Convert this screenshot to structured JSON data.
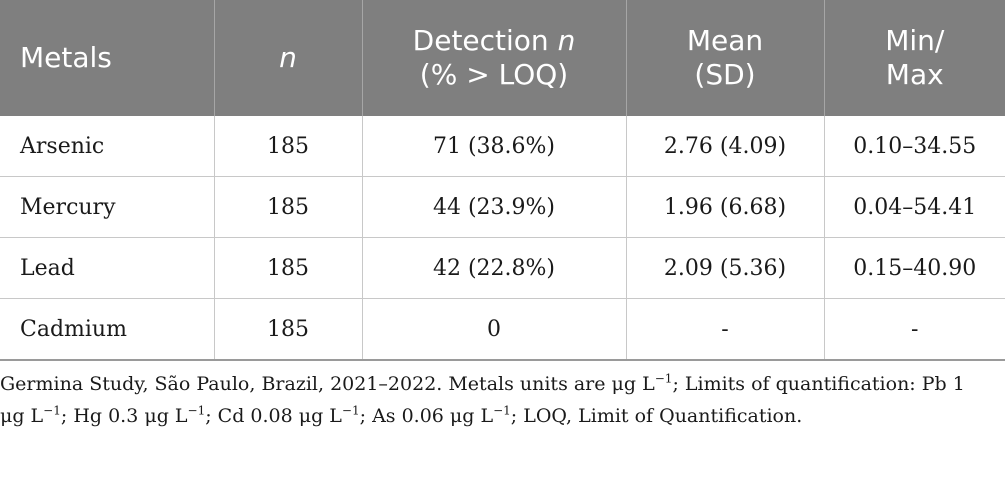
{
  "table": {
    "headers": {
      "metals": "Metals",
      "n": "n",
      "detection_line1_text": "Detection ",
      "detection_line1_ital": "n",
      "detection_line2": "(% > LOQ)",
      "mean_line1": "Mean",
      "mean_line2": "(SD)",
      "minmax_line1": "Min/",
      "minmax_line2": "Max"
    },
    "rows": [
      {
        "metal": "Arsenic",
        "n": "185",
        "detection": "71 (38.6%)",
        "mean_sd": "2.76 (4.09)",
        "min_max": "0.10–34.55"
      },
      {
        "metal": "Mercury",
        "n": "185",
        "detection": "44 (23.9%)",
        "mean_sd": "1.96 (6.68)",
        "min_max": "0.04–54.41"
      },
      {
        "metal": "Lead",
        "n": "185",
        "detection": "42 (22.8%)",
        "mean_sd": "2.09 (5.36)",
        "min_max": "0.15–40.90"
      },
      {
        "metal": "Cadmium",
        "n": "185",
        "detection": "0",
        "mean_sd": "-",
        "min_max": "-"
      }
    ]
  },
  "footnote": {
    "p1": "Germina Study, São Paulo, Brazil, 2021–2022. Metals units are μg L",
    "sup": "−1",
    "p2": "; Limits of quantification: Pb 1 μg L",
    "p3": "; Hg 0.3 μg L",
    "p4": "; Cd 0.08 μg L",
    "p5": "; As 0.06 μg L",
    "p6": "; LOQ, Limit of Quantification."
  }
}
